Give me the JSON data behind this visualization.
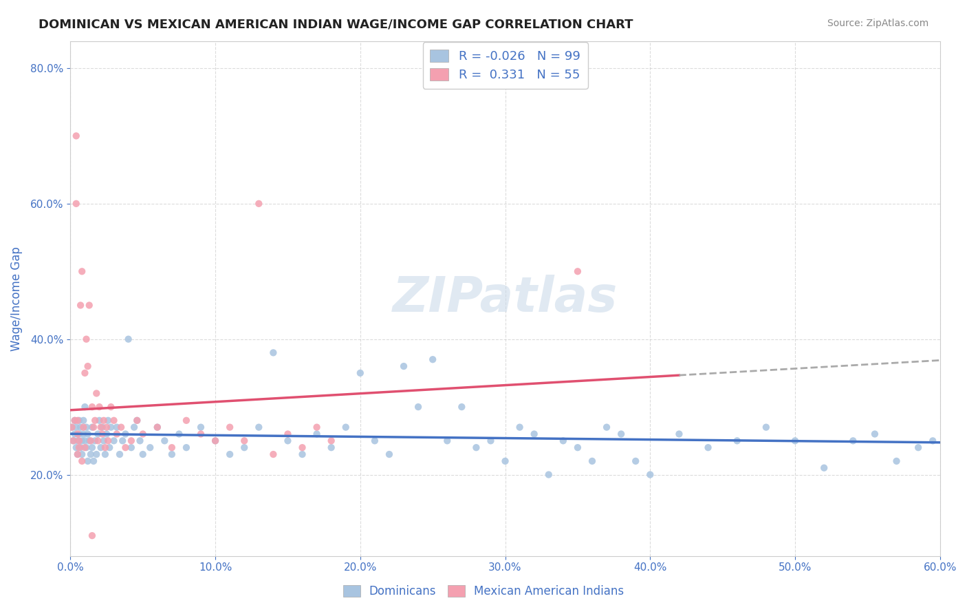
{
  "title": "DOMINICAN VS MEXICAN AMERICAN INDIAN WAGE/INCOME GAP CORRELATION CHART",
  "source": "Source: ZipAtlas.com",
  "ylabel": "Wage/Income Gap",
  "legend_blue_r": "-0.026",
  "legend_blue_n": "99",
  "legend_pink_r": "0.331",
  "legend_pink_n": "55",
  "legend_label_blue": "Dominicans",
  "legend_label_pink": "Mexican American Indians",
  "watermark": "ZIPatlas",
  "blue_color": "#a8c4e0",
  "pink_color": "#f4a0b0",
  "blue_line_color": "#4472c4",
  "pink_line_color": "#e05070",
  "dashed_line_color": "#aaaaaa",
  "text_color": "#4472c4",
  "background_color": "#ffffff",
  "grid_color": "#cccccc",
  "xmin": 0.0,
  "xmax": 0.6,
  "ymin": 0.08,
  "ymax": 0.84,
  "blue_N": 99,
  "pink_N": 55,
  "blue_dots_x": [
    0.001,
    0.002,
    0.003,
    0.003,
    0.004,
    0.004,
    0.005,
    0.005,
    0.006,
    0.006,
    0.007,
    0.007,
    0.008,
    0.008,
    0.009,
    0.009,
    0.01,
    0.01,
    0.011,
    0.011,
    0.012,
    0.012,
    0.013,
    0.014,
    0.015,
    0.015,
    0.016,
    0.017,
    0.018,
    0.019,
    0.02,
    0.021,
    0.022,
    0.023,
    0.024,
    0.025,
    0.026,
    0.027,
    0.028,
    0.03,
    0.032,
    0.034,
    0.036,
    0.038,
    0.04,
    0.042,
    0.044,
    0.046,
    0.048,
    0.05,
    0.055,
    0.06,
    0.065,
    0.07,
    0.075,
    0.08,
    0.09,
    0.1,
    0.11,
    0.12,
    0.13,
    0.14,
    0.15,
    0.16,
    0.17,
    0.18,
    0.19,
    0.2,
    0.21,
    0.22,
    0.23,
    0.24,
    0.25,
    0.26,
    0.27,
    0.28,
    0.29,
    0.3,
    0.31,
    0.32,
    0.33,
    0.34,
    0.35,
    0.36,
    0.37,
    0.38,
    0.39,
    0.4,
    0.42,
    0.44,
    0.46,
    0.48,
    0.5,
    0.52,
    0.54,
    0.555,
    0.57,
    0.585,
    0.595
  ],
  "blue_dots_y": [
    0.27,
    0.25,
    0.28,
    0.26,
    0.24,
    0.27,
    0.25,
    0.23,
    0.26,
    0.28,
    0.24,
    0.27,
    0.25,
    0.23,
    0.26,
    0.28,
    0.3,
    0.25,
    0.27,
    0.24,
    0.26,
    0.22,
    0.25,
    0.23,
    0.24,
    0.27,
    0.22,
    0.25,
    0.23,
    0.26,
    0.28,
    0.24,
    0.27,
    0.25,
    0.23,
    0.26,
    0.28,
    0.24,
    0.27,
    0.25,
    0.27,
    0.23,
    0.25,
    0.26,
    0.4,
    0.24,
    0.27,
    0.28,
    0.25,
    0.23,
    0.24,
    0.27,
    0.25,
    0.23,
    0.26,
    0.24,
    0.27,
    0.25,
    0.23,
    0.24,
    0.27,
    0.38,
    0.25,
    0.23,
    0.26,
    0.24,
    0.27,
    0.35,
    0.25,
    0.23,
    0.36,
    0.3,
    0.37,
    0.25,
    0.3,
    0.24,
    0.25,
    0.22,
    0.27,
    0.26,
    0.2,
    0.25,
    0.24,
    0.22,
    0.27,
    0.26,
    0.22,
    0.2,
    0.26,
    0.24,
    0.25,
    0.27,
    0.25,
    0.21,
    0.25,
    0.26,
    0.22,
    0.24,
    0.25
  ],
  "pink_dots_x": [
    0.001,
    0.002,
    0.003,
    0.004,
    0.004,
    0.005,
    0.005,
    0.006,
    0.007,
    0.008,
    0.009,
    0.01,
    0.011,
    0.012,
    0.013,
    0.014,
    0.015,
    0.016,
    0.017,
    0.018,
    0.019,
    0.02,
    0.021,
    0.022,
    0.023,
    0.024,
    0.025,
    0.026,
    0.028,
    0.03,
    0.032,
    0.035,
    0.038,
    0.042,
    0.046,
    0.05,
    0.06,
    0.07,
    0.08,
    0.09,
    0.1,
    0.11,
    0.12,
    0.13,
    0.14,
    0.15,
    0.16,
    0.17,
    0.18,
    0.35,
    0.005,
    0.006,
    0.008,
    0.01,
    0.015
  ],
  "pink_dots_y": [
    0.27,
    0.25,
    0.28,
    0.7,
    0.6,
    0.26,
    0.28,
    0.24,
    0.45,
    0.5,
    0.27,
    0.35,
    0.4,
    0.36,
    0.45,
    0.25,
    0.3,
    0.27,
    0.28,
    0.32,
    0.25,
    0.3,
    0.27,
    0.26,
    0.28,
    0.24,
    0.27,
    0.25,
    0.3,
    0.28,
    0.26,
    0.27,
    0.24,
    0.25,
    0.28,
    0.26,
    0.27,
    0.24,
    0.28,
    0.26,
    0.25,
    0.27,
    0.25,
    0.6,
    0.23,
    0.26,
    0.24,
    0.27,
    0.25,
    0.5,
    0.23,
    0.25,
    0.22,
    0.24,
    0.11
  ]
}
